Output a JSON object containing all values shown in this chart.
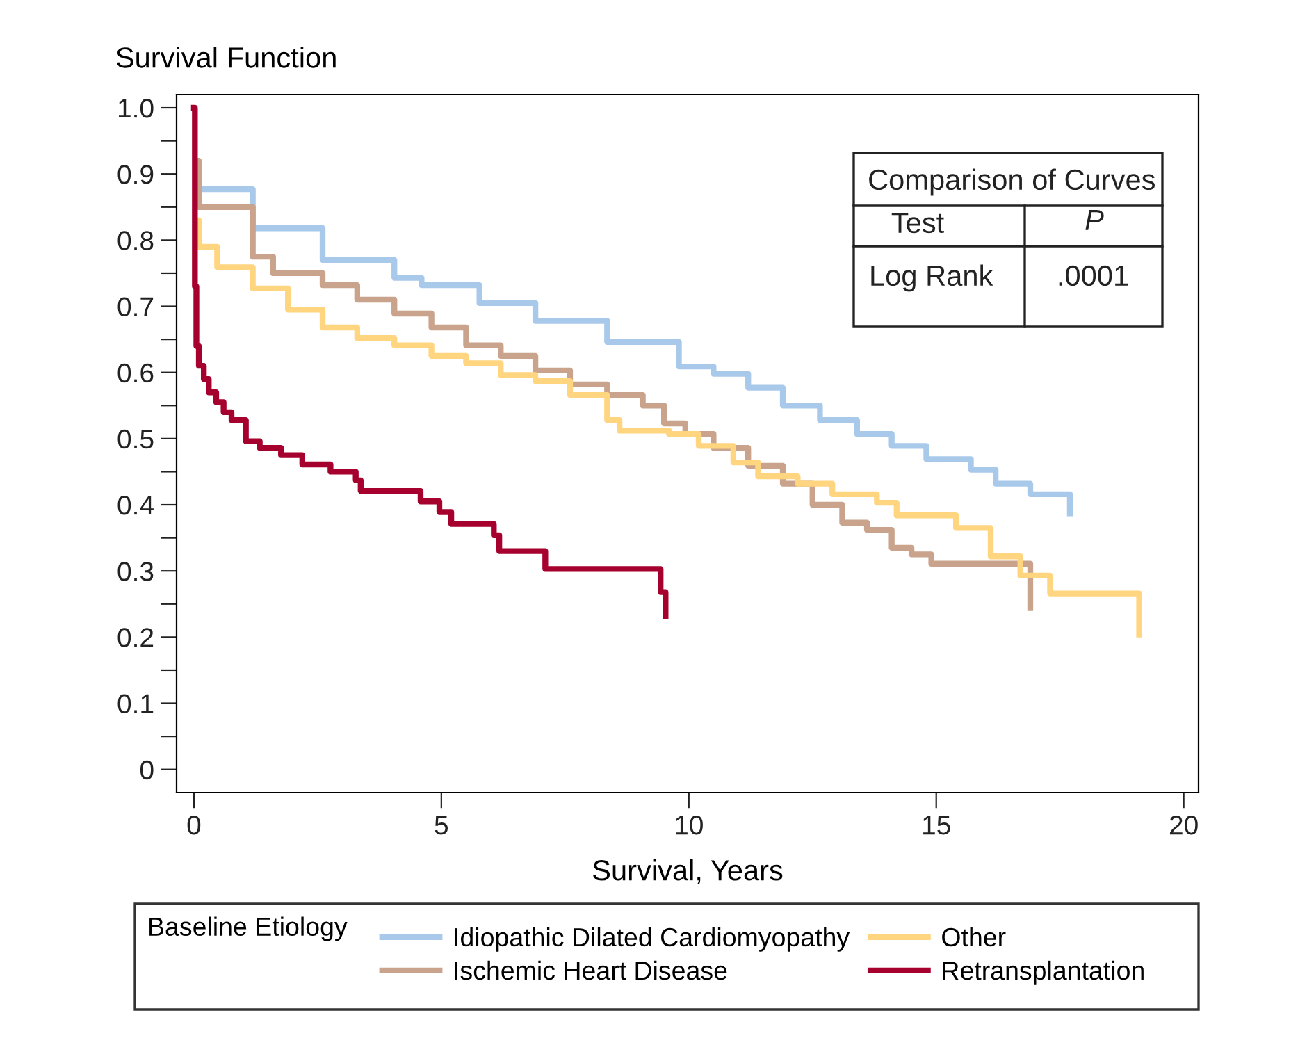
{
  "chart_data": {
    "type": "step",
    "xlabel": "Survival, Years",
    "ylabel": "Survival Function",
    "legend_title": "Baseline Etiology",
    "legend": "bottom",
    "grid": false,
    "line_style": "solid",
    "marker": "none",
    "xlim": [
      -0.35,
      20.3
    ],
    "ylim": [
      -0.035,
      1.02
    ],
    "xticks": [
      0,
      5,
      10,
      15,
      20
    ],
    "yticks": [
      {
        "value": 0,
        "label": "0"
      },
      {
        "value": 0.05,
        "label": null
      },
      0.1,
      {
        "value": 0.15,
        "label": null
      },
      0.2,
      {
        "value": 0.25,
        "label": null
      },
      0.3,
      {
        "value": 0.35,
        "label": null
      },
      0.4,
      {
        "value": 0.45,
        "label": null
      },
      0.5,
      {
        "value": 0.55,
        "label": null
      },
      0.6,
      {
        "value": 0.65,
        "label": null
      },
      0.7,
      {
        "value": 0.75,
        "label": null
      },
      0.8,
      {
        "value": 0.85,
        "label": null
      },
      0.9,
      {
        "value": 0.95,
        "label": null
      },
      {
        "value": 1.0,
        "label": "1.0"
      }
    ],
    "annotations": [
      "Comparison of Curves",
      "Test",
      "P",
      "Log Rank",
      ".0001"
    ],
    "series": [
      {
        "name": "Idiopathic Dilated Cardiomyopathy",
        "color": "#a9c9ea",
        "x": [
          0.1,
          1.19,
          2.6,
          4.05,
          4.6,
          5.77,
          6.9,
          8.35,
          9.8,
          10.5,
          11.2,
          11.9,
          12.65,
          13.4,
          14.1,
          14.8,
          15.7,
          16.2,
          16.9,
          17.7,
          17.7
        ],
        "values": [
          0.877,
          0.818,
          0.77,
          0.743,
          0.732,
          0.705,
          0.678,
          0.646,
          0.609,
          0.598,
          0.577,
          0.55,
          0.528,
          0.507,
          0.489,
          0.469,
          0.453,
          0.432,
          0.416,
          0.416,
          0.387
        ]
      },
      {
        "name": "Ischemic Heart Disease",
        "color": "#c9a38c",
        "x": [
          0.05,
          0.1,
          1.19,
          1.6,
          2.6,
          3.3,
          4.05,
          4.8,
          5.5,
          6.2,
          6.9,
          7.6,
          8.35,
          9.07,
          9.5,
          9.93,
          10.5,
          11.2,
          11.9,
          12.5,
          13.1,
          13.6,
          14.1,
          14.5,
          14.9,
          16.9,
          16.9
        ],
        "values": [
          0.92,
          0.85,
          0.775,
          0.75,
          0.732,
          0.71,
          0.689,
          0.668,
          0.641,
          0.625,
          0.603,
          0.582,
          0.566,
          0.55,
          0.523,
          0.507,
          0.486,
          0.459,
          0.432,
          0.4,
          0.373,
          0.362,
          0.335,
          0.325,
          0.311,
          0.311,
          0.244
        ]
      },
      {
        "name": "Other",
        "color": "#ffd580",
        "x": [
          0.05,
          0.1,
          0.47,
          1.19,
          1.9,
          2.6,
          3.3,
          4.05,
          4.8,
          5.5,
          6.2,
          6.9,
          7.6,
          8.35,
          8.6,
          9.6,
          10.2,
          10.9,
          11.4,
          12.2,
          12.9,
          13.8,
          14.2,
          15.4,
          16.1,
          16.7,
          17.3,
          19.1,
          19.1
        ],
        "values": [
          0.83,
          0.79,
          0.759,
          0.727,
          0.695,
          0.668,
          0.652,
          0.641,
          0.625,
          0.614,
          0.596,
          0.587,
          0.566,
          0.528,
          0.512,
          0.507,
          0.489,
          0.464,
          0.443,
          0.432,
          0.416,
          0.403,
          0.384,
          0.365,
          0.322,
          0.293,
          0.266,
          0.266,
          0.204
        ]
      },
      {
        "name": "Retransplantation",
        "color": "#a6002e",
        "x": [
          0,
          0.02,
          0.05,
          0.1,
          0.2,
          0.3,
          0.45,
          0.6,
          0.76,
          1.05,
          1.33,
          1.76,
          2.19,
          2.76,
          3.27,
          3.37,
          4.58,
          4.96,
          5.2,
          6.06,
          6.17,
          7.1,
          9.43,
          9.53
        ],
        "values": [
          1.0,
          0.73,
          0.64,
          0.61,
          0.59,
          0.57,
          0.555,
          0.54,
          0.528,
          0.496,
          0.486,
          0.475,
          0.461,
          0.45,
          0.437,
          0.421,
          0.405,
          0.389,
          0.371,
          0.354,
          0.33,
          0.303,
          0.268,
          0.232
        ]
      }
    ]
  }
}
